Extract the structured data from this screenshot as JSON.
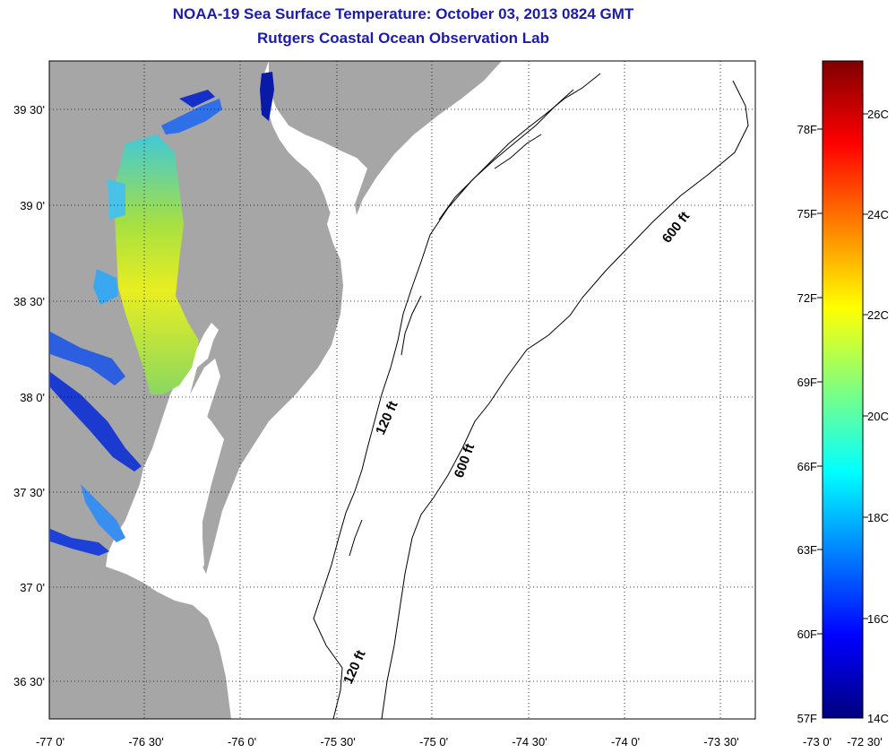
{
  "title": "NOAA-19 Sea Surface Temperature:  October 03, 2013 0824 GMT",
  "subtitle": "Rutgers Coastal Ocean Observation Lab",
  "lon_labels": [
    "-77 0'",
    "-76 30'",
    "-76 0'",
    "-75 30'",
    "-75 0'",
    "-74 30'",
    "-74 0'",
    "-73 30'",
    "-73 0'",
    "-72 30'"
  ],
  "lat_labels": [
    "39 30'",
    "39 0'",
    "38 30'",
    "38 0'",
    "37 30'",
    "37 0'",
    "36 30'"
  ],
  "contours": [
    {
      "label": "600 ft"
    },
    {
      "label": "600 ft"
    },
    {
      "label": "120 ft"
    },
    {
      "label": "120 ft"
    }
  ],
  "colorbar": {
    "fahrenheit": [
      "78F",
      "75F",
      "72F",
      "69F",
      "66F",
      "63F",
      "60F",
      "57F"
    ],
    "celsius": [
      "26C",
      "24C",
      "22C",
      "20C",
      "18C",
      "16C",
      "14C"
    ],
    "min_f": 57,
    "max_f": 81,
    "colormap": "jet"
  },
  "colors": {
    "land": "#a6a6a6",
    "water": "#ffffff",
    "title": "#1c1ca8"
  }
}
